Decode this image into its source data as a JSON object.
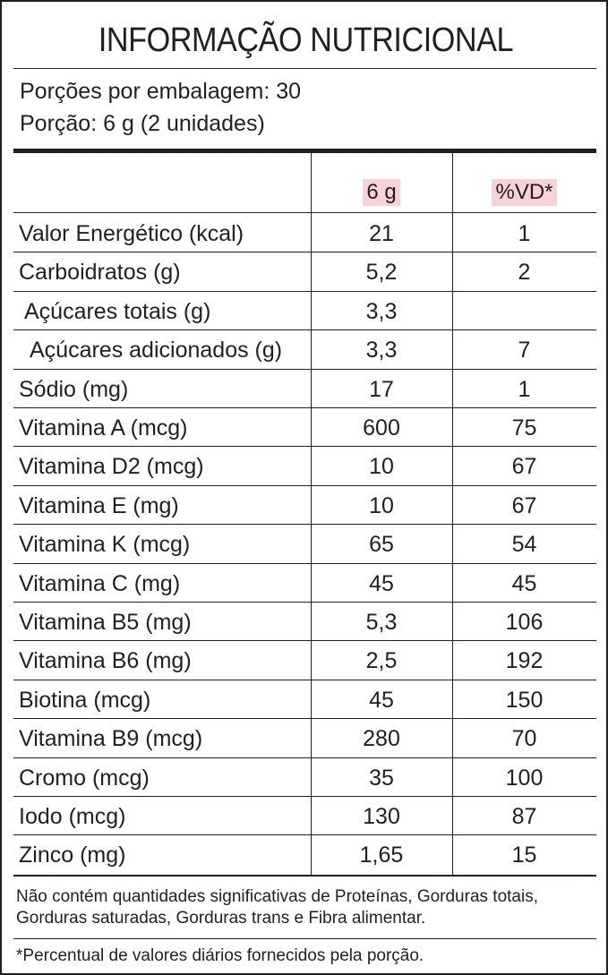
{
  "title": "INFORMAÇÃO NUTRICIONAL",
  "serving": {
    "per_package": "Porções por embalagem: 30",
    "portion": "Porção: 6 g (2 unidades)"
  },
  "header": {
    "amount_label": "6 g",
    "vd_label": "%VD*"
  },
  "colors": {
    "header_highlight": "#f7d3d6",
    "text": "#231f20"
  },
  "rows": [
    {
      "name": "Valor Energético (kcal)",
      "amount": "21",
      "vd": "1",
      "indent": 0
    },
    {
      "name": "Carboidratos (g)",
      "amount": "5,2",
      "vd": "2",
      "indent": 0
    },
    {
      "name": "Açúcares totais (g)",
      "amount": "3,3",
      "vd": "",
      "indent": 1
    },
    {
      "name": "Açúcares adicionados (g)",
      "amount": "3,3",
      "vd": "7",
      "indent": 2
    },
    {
      "name": "Sódio (mg)",
      "amount": "17",
      "vd": "1",
      "indent": 0
    },
    {
      "name": "Vitamina A (mcg)",
      "amount": "600",
      "vd": "75",
      "indent": 0
    },
    {
      "name": "Vitamina D2 (mcg)",
      "amount": "10",
      "vd": "67",
      "indent": 0
    },
    {
      "name": "Vitamina E (mg)",
      "amount": "10",
      "vd": "67",
      "indent": 0
    },
    {
      "name": "Vitamina K (mcg)",
      "amount": "65",
      "vd": "54",
      "indent": 0
    },
    {
      "name": "Vitamina C (mg)",
      "amount": "45",
      "vd": "45",
      "indent": 0
    },
    {
      "name": "Vitamina B5 (mg)",
      "amount": "5,3",
      "vd": "106",
      "indent": 0
    },
    {
      "name": "Vitamina B6 (mg)",
      "amount": "2,5",
      "vd": "192",
      "indent": 0
    },
    {
      "name": "Biotina (mcg)",
      "amount": "45",
      "vd": "150",
      "indent": 0
    },
    {
      "name": "Vitamina B9 (mcg)",
      "amount": "280",
      "vd": "70",
      "indent": 0
    },
    {
      "name": "Cromo (mcg)",
      "amount": "35",
      "vd": "100",
      "indent": 0
    },
    {
      "name": "Iodo (mcg)",
      "amount": "130",
      "vd": "87",
      "indent": 0
    },
    {
      "name": "Zinco (mg)",
      "amount": "1,65",
      "vd": "15",
      "indent": 0
    }
  ],
  "footnotes": {
    "not_significant": "Não contém quantidades significativas de Proteínas, Gorduras totais, Gorduras saturadas, Gorduras trans e Fibra alimentar.",
    "percent_note": "*Percentual de valores diários fornecidos pela porção."
  }
}
